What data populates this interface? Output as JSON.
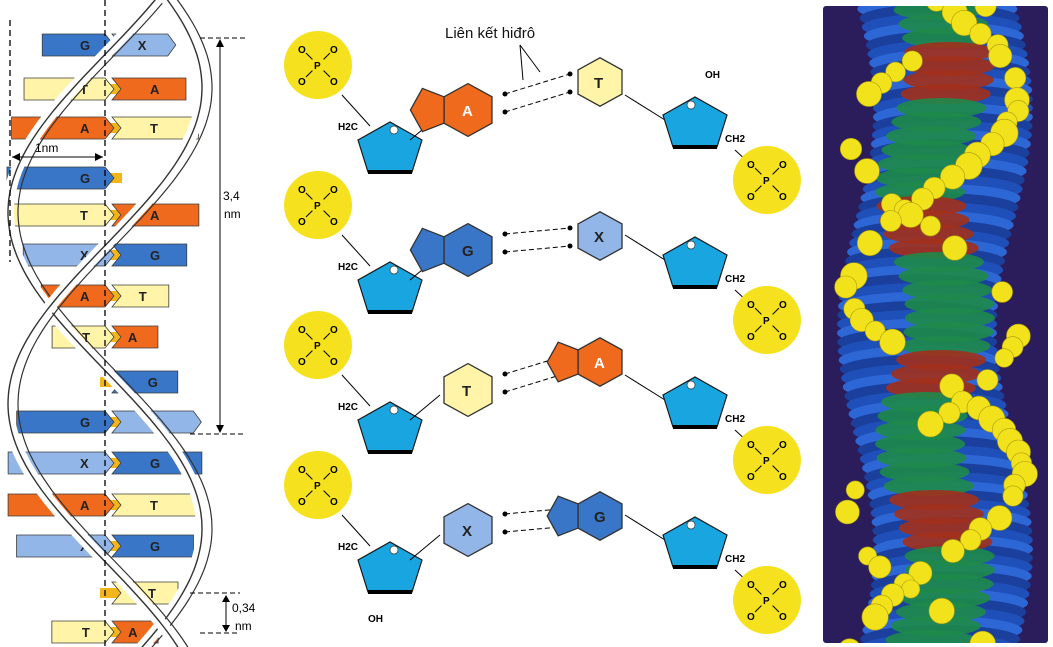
{
  "colors": {
    "G": "#3a76c7",
    "X": "#93b6e8",
    "T": "#fff4a8",
    "A": "#ef6a1c",
    "sugar": "#19a6e0",
    "phosphate": "#f5e11e",
    "connector": "#f2b51a",
    "model_bg": "#2a1b57"
  },
  "left_helix": {
    "rungs": [
      {
        "l": "G",
        "r": "X"
      },
      {
        "l": "T",
        "r": "A"
      },
      {
        "l": "A",
        "r": "T"
      },
      {
        "l": "G",
        "r": ""
      },
      {
        "l": "T",
        "r": "A"
      },
      {
        "l": "X",
        "r": "G"
      },
      {
        "l": "A",
        "r": "T"
      },
      {
        "l": "T",
        "r": "A"
      },
      {
        "l": "",
        "r": "G"
      },
      {
        "l": "G",
        "r": "X"
      },
      {
        "l": "X",
        "r": "G"
      },
      {
        "l": "A",
        "r": "T"
      },
      {
        "l": "X",
        "r": "G"
      },
      {
        "l": "",
        "r": "T"
      },
      {
        "l": "T",
        "r": "A"
      }
    ],
    "width_label": "1nm",
    "pitch_label_1": "3,4",
    "pitch_label_2": "nm",
    "step_label_1": "0,34",
    "step_label_2": "nm"
  },
  "middle": {
    "hbond_label": "Liên kết hiđrô",
    "pairs": [
      {
        "left": "A",
        "right": "T"
      },
      {
        "left": "G",
        "right": "X"
      },
      {
        "left": "T",
        "right": "A"
      },
      {
        "left": "X",
        "right": "G"
      }
    ],
    "atoms": {
      "P": "P",
      "O": "O",
      "OH": "OH",
      "O_minus": "O-",
      "H2C": "H2C",
      "CH2": "CH2"
    }
  }
}
